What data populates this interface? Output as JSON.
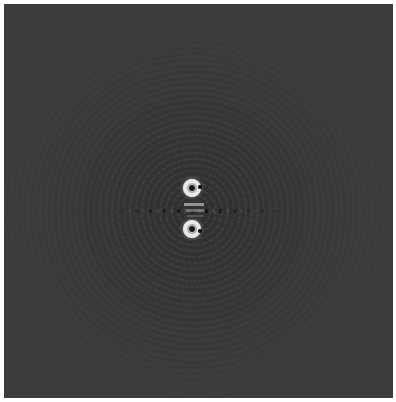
{
  "image": {
    "kind": "grayscale-diffraction-pattern",
    "colors": {
      "border": "#ffffff",
      "background": "#3c3c3c",
      "ring_dark": "#2e2e2e",
      "ring_light": "#4a4a4a",
      "spot_bright": "#e6e6e6",
      "spot_dark": "#101010"
    },
    "features": [
      "concentric-ring-pattern",
      "upper-bright-spot",
      "lower-bright-spot",
      "horizontal-streak"
    ]
  }
}
